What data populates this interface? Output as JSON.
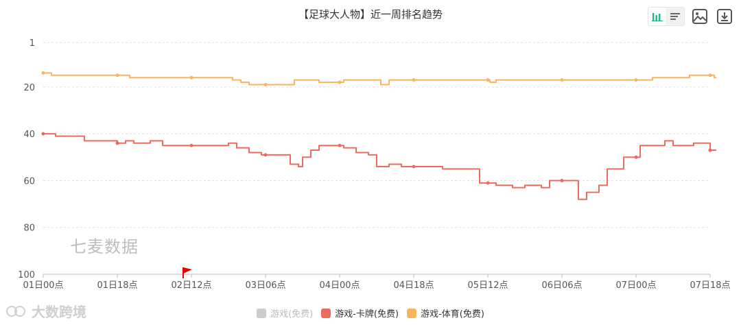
{
  "title": "【足球大人物】近一周排名趋势",
  "watermark": "七麦数据",
  "corner_mark": "大数跨境",
  "toolbar": {
    "bar_icon": "bar-chart-icon",
    "list_icon": "list-icon",
    "image_icon": "image-export-icon",
    "download_icon": "download-icon"
  },
  "colors": {
    "grid": "#dddddd",
    "axis": "#bbbbbb",
    "series_disabled": "#cccccc",
    "series_card": "#ee6a5e",
    "series_sports": "#f8b55f",
    "flag": "#e00000"
  },
  "legend": [
    {
      "label": "游戏(免费)",
      "color": "#cccccc",
      "disabled": true
    },
    {
      "label": "游戏-卡牌(免费)",
      "color": "#ee6a5e",
      "disabled": false
    },
    {
      "label": "游戏-体育(免费)",
      "color": "#f8b55f",
      "disabled": false
    }
  ],
  "chart_data": {
    "type": "line",
    "y_inverted": true,
    "ylim": [
      1,
      100
    ],
    "y_ticks": [
      1,
      20,
      40,
      60,
      80,
      100
    ],
    "x_ticks": [
      "01日00点",
      "01日18点",
      "02日12点",
      "03日06点",
      "04日00点",
      "04日18点",
      "05日12点",
      "06日06点",
      "07日00点",
      "07日18点"
    ],
    "x_tick_hours": [
      0,
      18,
      36,
      54,
      72,
      90,
      108,
      126,
      144,
      162
    ],
    "x_range_hours": [
      0,
      162
    ],
    "grid": true,
    "legend_position": "bottom",
    "series": [
      {
        "name": "游戏(免费)",
        "color": "#cccccc",
        "points": []
      },
      {
        "name": "游戏-卡牌(免费)",
        "color": "#ee6a5e",
        "step": true,
        "markers_at_hours": [
          0,
          18,
          36,
          54,
          72,
          90,
          108,
          126,
          144,
          162
        ],
        "points": [
          [
            0,
            40
          ],
          [
            3,
            41
          ],
          [
            10,
            43
          ],
          [
            18,
            44
          ],
          [
            20,
            43
          ],
          [
            22,
            44
          ],
          [
            26,
            43
          ],
          [
            29,
            45
          ],
          [
            36,
            45
          ],
          [
            43,
            45
          ],
          [
            45,
            44
          ],
          [
            47,
            46
          ],
          [
            50,
            48
          ],
          [
            53,
            49
          ],
          [
            60,
            53
          ],
          [
            62,
            54
          ],
          [
            63,
            50
          ],
          [
            65,
            47
          ],
          [
            67,
            45
          ],
          [
            72,
            45
          ],
          [
            73,
            46
          ],
          [
            76,
            48
          ],
          [
            79,
            49
          ],
          [
            81,
            54
          ],
          [
            84,
            53
          ],
          [
            87,
            54
          ],
          [
            90,
            54
          ],
          [
            97,
            55
          ],
          [
            102,
            55
          ],
          [
            106,
            61
          ],
          [
            108,
            61
          ],
          [
            110,
            62
          ],
          [
            114,
            63
          ],
          [
            117,
            62
          ],
          [
            121,
            63
          ],
          [
            123,
            60
          ],
          [
            126,
            60
          ],
          [
            130,
            68
          ],
          [
            132,
            65
          ],
          [
            135,
            62
          ],
          [
            137,
            55
          ],
          [
            141,
            50
          ],
          [
            144,
            50
          ],
          [
            145,
            45
          ],
          [
            149,
            45
          ],
          [
            151,
            43
          ],
          [
            153,
            45
          ],
          [
            157,
            45
          ],
          [
            158,
            44
          ],
          [
            161,
            44
          ],
          [
            162,
            47
          ],
          [
            164,
            47
          ]
        ]
      },
      {
        "name": "游戏-体育(免费)",
        "color": "#f8b55f",
        "step": true,
        "markers_at_hours": [
          0,
          18,
          36,
          54,
          72,
          90,
          108,
          126,
          144,
          162
        ],
        "points": [
          [
            0,
            14
          ],
          [
            2,
            15
          ],
          [
            18,
            15
          ],
          [
            21,
            16
          ],
          [
            36,
            16
          ],
          [
            44,
            16
          ],
          [
            46,
            17
          ],
          [
            48,
            18
          ],
          [
            50,
            19
          ],
          [
            54,
            19
          ],
          [
            60,
            19
          ],
          [
            61,
            17
          ],
          [
            66,
            17
          ],
          [
            67,
            18
          ],
          [
            72,
            18
          ],
          [
            73,
            17
          ],
          [
            81,
            17
          ],
          [
            82,
            19
          ],
          [
            83,
            19
          ],
          [
            84,
            17
          ],
          [
            90,
            17
          ],
          [
            108,
            17
          ],
          [
            108.5,
            18
          ],
          [
            109,
            18
          ],
          [
            110,
            17
          ],
          [
            126,
            17
          ],
          [
            144,
            17
          ],
          [
            148,
            16
          ],
          [
            156,
            16
          ],
          [
            157,
            15
          ],
          [
            162,
            15
          ],
          [
            163,
            16
          ],
          [
            164,
            16
          ]
        ]
      }
    ],
    "flag_at_hour": 34
  }
}
